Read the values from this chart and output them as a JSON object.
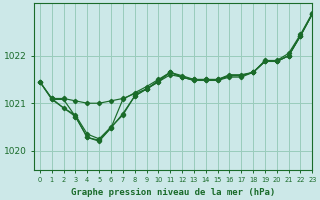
{
  "bg_color": "#cce8e8",
  "grid_color": "#99ccbb",
  "line_color": "#1a6b2a",
  "title": "Graphe pression niveau de la mer (hPa)",
  "xlim": [
    -0.5,
    23
  ],
  "ylim": [
    1019.6,
    1023.1
  ],
  "yticks": [
    1020,
    1021,
    1022
  ],
  "xtick_labels": [
    "0",
    "1",
    "2",
    "3",
    "4",
    "5",
    "6",
    "7",
    "8",
    "9",
    "10",
    "11",
    "12",
    "13",
    "14",
    "15",
    "16",
    "17",
    "18",
    "19",
    "20",
    "21",
    "22",
    "23"
  ],
  "line1_x": [
    0,
    1,
    2,
    3,
    4,
    5,
    6,
    7,
    8,
    9,
    10,
    11,
    12,
    13,
    14,
    15,
    16,
    17,
    18,
    19,
    20,
    21,
    22,
    23
  ],
  "line1_y": [
    1021.45,
    1021.1,
    1021.1,
    1021.05,
    1021.0,
    1021.0,
    1021.05,
    1021.1,
    1021.2,
    1021.3,
    1021.45,
    1021.6,
    1021.55,
    1021.5,
    1021.5,
    1021.5,
    1021.6,
    1021.6,
    1021.65,
    1021.9,
    1021.9,
    1022.05,
    1022.45,
    1022.9
  ],
  "line2_x": [
    0,
    1,
    2,
    3,
    4,
    5,
    6,
    7,
    8,
    9,
    10,
    11,
    12,
    13,
    14,
    15,
    16,
    17,
    18,
    19,
    20,
    21,
    22,
    23
  ],
  "line2_y": [
    1021.45,
    1021.1,
    1020.9,
    1020.75,
    1020.35,
    1020.25,
    1020.5,
    1020.75,
    1021.15,
    1021.3,
    1021.45,
    1021.65,
    1021.55,
    1021.48,
    1021.48,
    1021.48,
    1021.58,
    1021.58,
    1021.65,
    1021.88,
    1021.88,
    1022.0,
    1022.42,
    1022.88
  ],
  "line3_x": [
    0,
    1,
    3,
    4,
    5,
    6,
    7,
    8,
    9,
    10,
    11,
    12,
    13,
    14,
    15,
    16,
    17,
    18,
    19,
    20,
    21,
    22,
    23
  ],
  "line3_y": [
    1021.45,
    1021.08,
    1020.72,
    1020.28,
    1020.22,
    1020.48,
    1021.08,
    1021.22,
    1021.35,
    1021.5,
    1021.65,
    1021.58,
    1021.5,
    1021.5,
    1021.5,
    1021.58,
    1021.58,
    1021.65,
    1021.88,
    1021.88,
    1022.0,
    1022.42,
    1022.88
  ],
  "line4_x": [
    1,
    2,
    3,
    4,
    5,
    6,
    7,
    8,
    9,
    10,
    11,
    12,
    13,
    14,
    15,
    16,
    17,
    18,
    19,
    20,
    21,
    22,
    23
  ],
  "line4_y": [
    1021.08,
    1021.08,
    1020.72,
    1020.28,
    1020.2,
    1020.48,
    1020.78,
    1021.15,
    1021.3,
    1021.48,
    1021.65,
    1021.55,
    1021.48,
    1021.48,
    1021.48,
    1021.55,
    1021.55,
    1021.65,
    1021.88,
    1021.88,
    1022.0,
    1022.42,
    1022.88
  ]
}
